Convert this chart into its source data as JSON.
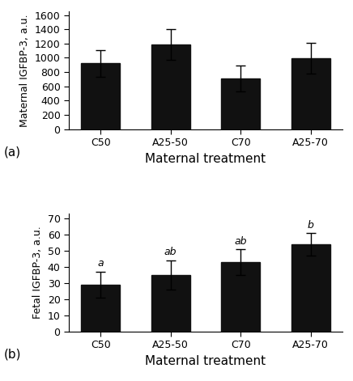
{
  "categories": [
    "C50",
    "A25-50",
    "C70",
    "A25-70"
  ],
  "top": {
    "values": [
      920,
      1190,
      710,
      990
    ],
    "errors": [
      185,
      215,
      185,
      215
    ],
    "ylabel": "Maternal IGFBP-3, a.u.",
    "xlabel": "Maternal treatment",
    "panel_label": "(a)",
    "yticks": [
      0,
      200,
      400,
      600,
      800,
      1000,
      1200,
      1400,
      1600
    ],
    "ylim": [
      0,
      1650
    ],
    "sig_labels": [
      "",
      "",
      "",
      ""
    ]
  },
  "bot": {
    "values": [
      29,
      35,
      43,
      54
    ],
    "errors": [
      8,
      9,
      8,
      7
    ],
    "ylabel": "Fetal IGFBP-3, a.u.",
    "xlabel": "Maternal treatment",
    "panel_label": "(b)",
    "yticks": [
      0,
      10,
      20,
      30,
      40,
      50,
      60,
      70
    ],
    "ylim": [
      0,
      73
    ],
    "sig_labels": [
      "a",
      "ab",
      "ab",
      "b"
    ]
  },
  "bar_color": "#111111",
  "bar_width": 0.55,
  "capsize": 4,
  "elinewidth": 1.0,
  "ecapthick": 1.0,
  "xlabel_fontsize": 11,
  "ylabel_fontsize": 9,
  "tick_fontsize": 9,
  "sig_fontsize": 9,
  "panel_label_fontsize": 11
}
